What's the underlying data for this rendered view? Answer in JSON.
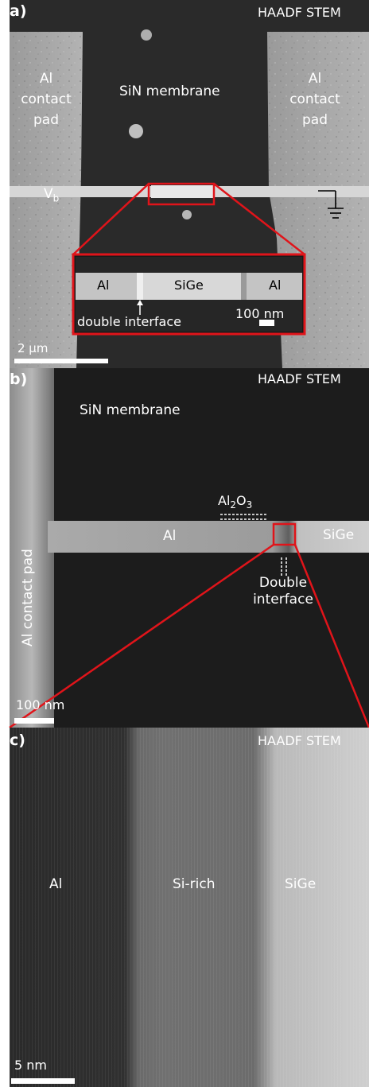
{
  "panel_a": {
    "label": "a)",
    "header": "HAADF STEM",
    "left_pad": [
      "Al",
      "contact",
      "pad"
    ],
    "right_pad": [
      "Al",
      "contact",
      "pad"
    ],
    "membrane": "SiN membrane",
    "vb_main": "V",
    "vb_sub": "b",
    "inset": {
      "left": "Al",
      "middle": "SiGe",
      "right": "Al",
      "interface": "double interface",
      "scale": "100 nm"
    },
    "scale": "2 µm"
  },
  "panel_b": {
    "label": "b)",
    "header": "HAADF STEM",
    "membrane": "SiN membrane",
    "al2o3_a": "Al",
    "al2o3_s1": "2",
    "al2o3_o": "O",
    "al2o3_s2": "3",
    "al": "Al",
    "sige": "SiGe",
    "interface": [
      "Double",
      "interface"
    ],
    "pad": "Al contact pad",
    "scale": "100 nm"
  },
  "panel_c": {
    "label": "c)",
    "header": "HAADF STEM",
    "al": "Al",
    "sirich": "Si-rich",
    "sige": "SiGe",
    "scale": "5 nm"
  },
  "colors": {
    "zoom_red": "#e0141a",
    "text": "#ffffff"
  }
}
